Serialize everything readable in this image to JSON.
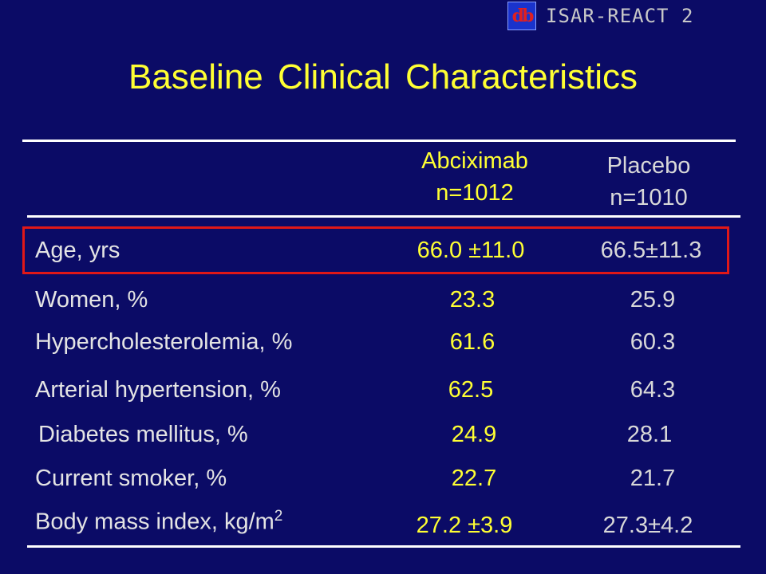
{
  "logo": {
    "mark": "db",
    "text": "ISAR-REACT 2"
  },
  "title": "Baseline Clinical Characteristics",
  "columns": {
    "abciximab": {
      "name": "Abciximab",
      "n": "n=1012"
    },
    "placebo": {
      "name": "Placebo",
      "n": "n=1010"
    }
  },
  "rows": [
    {
      "label": "Age, yrs",
      "abciximab": "66.0 ±11.0",
      "placebo": "66.5±11.3"
    },
    {
      "label": "Women, %",
      "abciximab": "23.3",
      "placebo": "25.9"
    },
    {
      "label": "Hypercholesterolemia, %",
      "abciximab": "61.6",
      "placebo": "60.3"
    },
    {
      "label": "Arterial hypertension, %",
      "abciximab": "62.5",
      "placebo": "64.3"
    },
    {
      "label": "Diabetes mellitus, %",
      "abciximab": "24.9",
      "placebo": "28.1"
    },
    {
      "label": "Current smoker, %",
      "abciximab": "22.7",
      "placebo": "21.7"
    },
    {
      "label": "Body mass index, kg/m",
      "label_sup": "2",
      "abciximab": "27.2 ±3.9",
      "placebo": "27.3±4.2"
    }
  ],
  "colors": {
    "background": "#0b0b66",
    "accent": "#ffff33",
    "highlight": "#e01818"
  }
}
